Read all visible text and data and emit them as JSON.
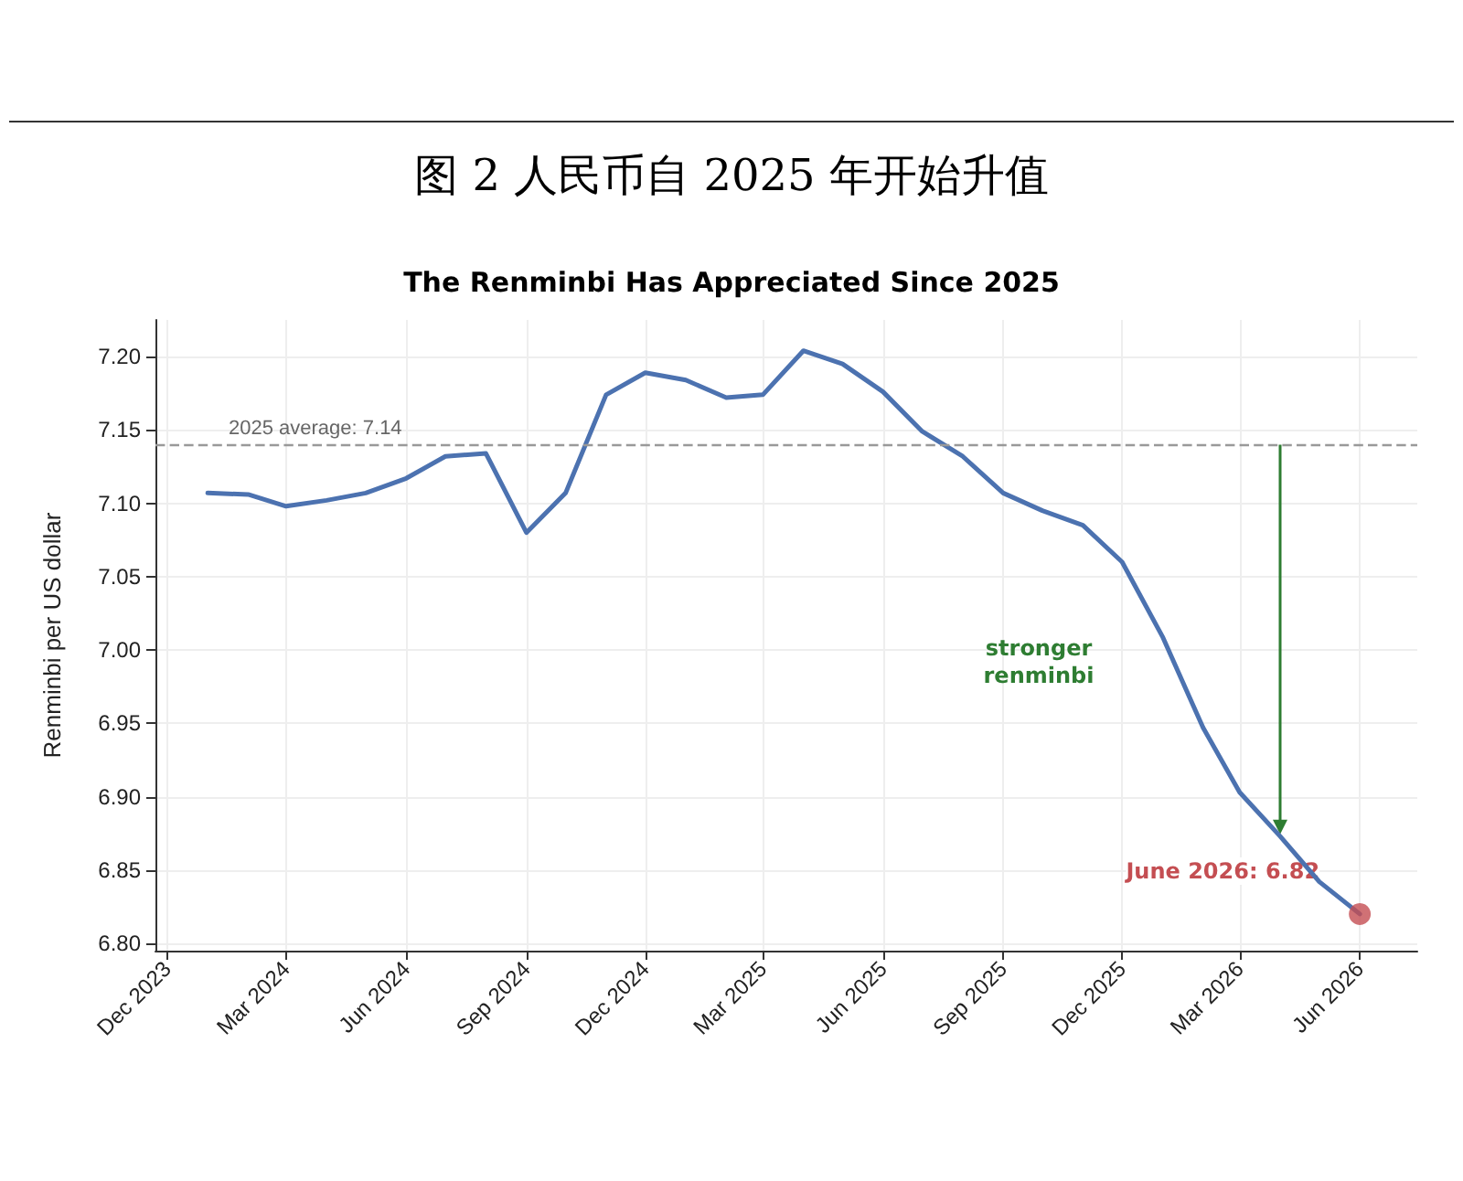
{
  "chart_data": {
    "type": "line",
    "title": "图 2 人民币自 2025 年开始升值",
    "subtitle": "The Renminbi Has Appreciated Since 2025",
    "ylabel": "Renminbi per US dollar",
    "x": [
      "2024-01",
      "2024-02",
      "2024-03",
      "2024-04",
      "2024-05",
      "2024-06",
      "2024-07",
      "2024-08",
      "2024-09",
      "2024-10",
      "2024-11",
      "2024-12",
      "2025-01",
      "2025-02",
      "2025-03",
      "2025-04",
      "2025-05",
      "2025-06",
      "2025-07",
      "2025-08",
      "2025-09",
      "2025-10",
      "2025-11",
      "2025-12",
      "2026-01",
      "2026-02",
      "2026-03",
      "2026-04",
      "2026-05",
      "2026-06"
    ],
    "series": [
      {
        "color": "#4c72b0",
        "marker": "none",
        "values": [
          7.107,
          7.106,
          7.098,
          7.102,
          7.107,
          7.117,
          7.132,
          7.134,
          7.08,
          7.107,
          7.174,
          7.189,
          7.184,
          7.172,
          7.174,
          7.204,
          7.195,
          7.176,
          7.149,
          7.132,
          7.107,
          7.095,
          7.085,
          7.06,
          7.009,
          6.947,
          6.903,
          6.873,
          6.842,
          6.82
        ]
      },
      {
        "type": "scatter",
        "color": "#c44e52",
        "marker": "circle",
        "x": [
          "2026-06"
        ],
        "values": [
          6.82
        ]
      }
    ],
    "ylim": [
      6.795,
      7.225
    ],
    "yticks": [
      {
        "value": 6.8,
        "label": "6.80"
      },
      {
        "value": 6.85,
        "label": "6.85"
      },
      {
        "value": 6.9,
        "label": "6.90"
      },
      {
        "value": 6.95,
        "label": "6.95"
      },
      {
        "value": 7.0,
        "label": "7.00"
      },
      {
        "value": 7.05,
        "label": "7.05"
      },
      {
        "value": 7.1,
        "label": "7.10"
      },
      {
        "value": 7.15,
        "label": "7.15"
      },
      {
        "value": 7.2,
        "label": "7.20"
      }
    ],
    "xlim": [
      "2023-11-22",
      "2026-07-15"
    ],
    "xticks": [
      {
        "value": "2023-12",
        "label": "Dec 2023"
      },
      {
        "value": "2024-03",
        "label": "Mar 2024"
      },
      {
        "value": "2024-06",
        "label": "Jun 2024"
      },
      {
        "value": "2024-09",
        "label": "Sep 2024"
      },
      {
        "value": "2024-12",
        "label": "Dec 2024"
      },
      {
        "value": "2025-03",
        "label": "Mar 2025"
      },
      {
        "value": "2025-06",
        "label": "Jun 2025"
      },
      {
        "value": "2025-09",
        "label": "Sep 2025"
      },
      {
        "value": "2025-12",
        "label": "Dec 2025"
      },
      {
        "value": "2026-03",
        "label": "Mar 2026"
      },
      {
        "value": "2026-06",
        "label": "Jun 2026"
      }
    ],
    "ref_lines": [
      {
        "axis": "y",
        "value": 7.14,
        "label": "2025 average: 7.14",
        "color": "#999999",
        "line_style": "dashed"
      }
    ],
    "annotations": [
      "stronger\nrenminbi",
      {
        "text": "June 2026: 6.82",
        "x": "2026-06",
        "y": 6.82
      }
    ],
    "grid": true
  }
}
